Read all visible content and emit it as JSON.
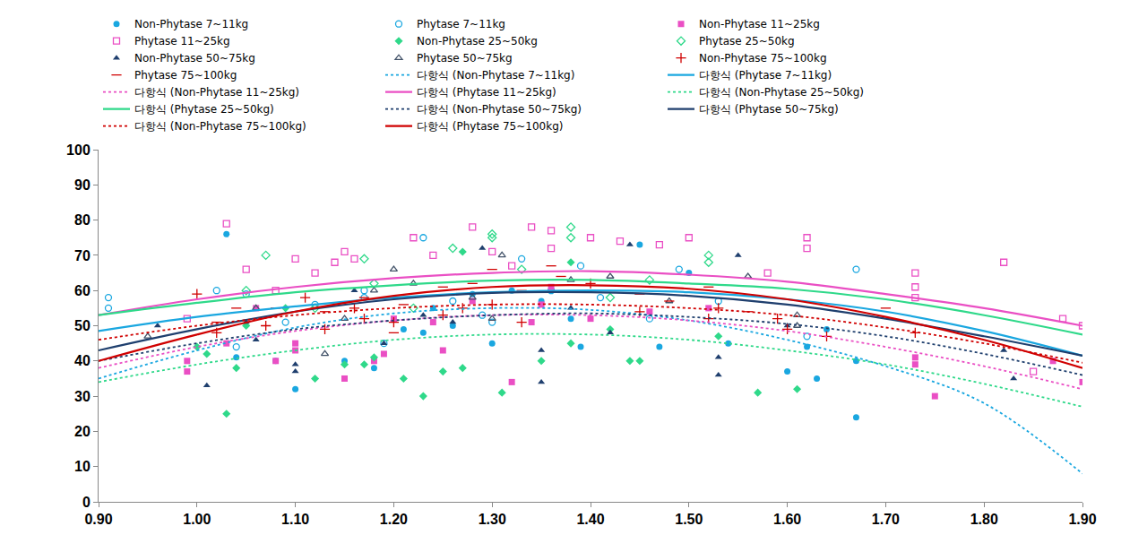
{
  "chart_data": {
    "type": "scatter",
    "xlim": [
      0.9,
      1.9
    ],
    "xticks": [
      {
        "value": 0.9,
        "label": "0.90"
      },
      {
        "value": 1.0,
        "label": "1.00"
      },
      {
        "value": 1.1,
        "label": "1.10"
      },
      {
        "value": 1.2,
        "label": "1.20"
      },
      {
        "value": 1.3,
        "label": "1.30"
      },
      {
        "value": 1.4,
        "label": "1.40"
      },
      {
        "value": 1.5,
        "label": "1.50"
      },
      {
        "value": 1.6,
        "label": "1.60"
      },
      {
        "value": 1.7,
        "label": "1.70"
      },
      {
        "value": 1.8,
        "label": "1.80"
      },
      {
        "value": 1.9,
        "label": "1.90"
      }
    ],
    "ylim": [
      0,
      100
    ],
    "yticks": [
      0,
      10,
      20,
      30,
      40,
      50,
      60,
      70,
      80,
      90,
      100
    ],
    "grid": false,
    "legend": "top",
    "series": [
      {
        "name": "Non-Phytase 7~11kg",
        "type": "scatter",
        "marker": "circle",
        "color": "#1aa7e0",
        "x": [
          1.03,
          1.04,
          1.08,
          1.1,
          1.15,
          1.18,
          1.24,
          1.26,
          1.3,
          1.32,
          1.35,
          1.38,
          1.39,
          1.45,
          1.47,
          1.5,
          1.54,
          1.6,
          1.62,
          1.63,
          1.67,
          1.67,
          1.64,
          1.23,
          1.21,
          1.28
        ],
        "values": [
          76,
          41,
          40,
          32,
          40,
          38,
          55,
          50,
          45,
          60,
          57,
          52,
          44,
          73,
          44,
          65,
          45,
          37,
          44,
          35,
          40,
          24,
          49,
          48,
          49,
          59
        ]
      },
      {
        "name": "Phytase 7~11kg",
        "type": "scatter",
        "marker": "circle-open",
        "color": "#1aa7e0",
        "x": [
          0.91,
          0.91,
          1.02,
          1.04,
          1.05,
          1.09,
          1.12,
          1.17,
          1.19,
          1.23,
          1.26,
          1.3,
          1.33,
          1.36,
          1.39,
          1.41,
          1.46,
          1.49,
          1.53,
          1.62,
          1.67,
          1.17,
          1.29
        ],
        "values": [
          58,
          55,
          60,
          44,
          59,
          51,
          56,
          58,
          45,
          75,
          57,
          51,
          69,
          60,
          67,
          58,
          52,
          66,
          57,
          47,
          66,
          60,
          53
        ]
      },
      {
        "name": "Non-Phytase 11~25kg",
        "type": "scatter",
        "marker": "square",
        "color": "#ea4fc4",
        "x": [
          0.99,
          0.99,
          1.03,
          1.06,
          1.08,
          1.1,
          1.1,
          1.15,
          1.18,
          1.2,
          1.25,
          1.28,
          1.32,
          1.34,
          1.35,
          1.36,
          1.4,
          1.46,
          1.52,
          1.73,
          1.73,
          1.75,
          1.87,
          1.9,
          1.24,
          1.19
        ],
        "values": [
          40,
          37,
          45,
          55,
          40,
          45,
          43,
          35,
          40,
          52,
          43,
          57,
          34,
          51,
          56,
          61,
          52,
          54,
          55,
          41,
          39,
          30,
          40,
          34,
          51,
          42
        ]
      },
      {
        "name": "Phytase 11~25kg",
        "type": "scatter",
        "marker": "square-open",
        "color": "#ea4fc4",
        "x": [
          1.03,
          1.05,
          1.1,
          1.12,
          1.14,
          1.15,
          1.16,
          1.22,
          1.24,
          1.28,
          1.3,
          1.32,
          1.34,
          1.36,
          1.36,
          1.4,
          1.43,
          1.47,
          1.5,
          1.58,
          1.62,
          1.62,
          1.73,
          1.73,
          1.73,
          1.82,
          1.85,
          1.88,
          1.9,
          0.99,
          1.08
        ],
        "values": [
          79,
          66,
          69,
          65,
          68,
          71,
          69,
          75,
          70,
          78,
          71,
          67,
          78,
          77,
          72,
          75,
          74,
          73,
          75,
          65,
          75,
          72,
          65,
          61,
          58,
          68,
          37,
          52,
          50,
          52,
          60
        ]
      },
      {
        "name": "Non-Phytase 25~50kg",
        "type": "scatter",
        "marker": "diamond",
        "color": "#2fd98a",
        "x": [
          1.0,
          1.01,
          1.03,
          1.04,
          1.09,
          1.12,
          1.15,
          1.17,
          1.18,
          1.21,
          1.23,
          1.25,
          1.27,
          1.31,
          1.35,
          1.38,
          1.42,
          1.44,
          1.45,
          1.53,
          1.57,
          1.61,
          1.27,
          1.38,
          1.05
        ],
        "values": [
          44,
          42,
          25,
          38,
          55,
          35,
          39,
          39,
          41,
          35,
          30,
          37,
          38,
          31,
          40,
          45,
          49,
          40,
          40,
          47,
          31,
          32,
          71,
          68,
          50
        ]
      },
      {
        "name": "Phytase 25~50kg",
        "type": "scatter",
        "marker": "diamond-open",
        "color": "#2fd98a",
        "x": [
          1.07,
          1.17,
          1.18,
          1.26,
          1.3,
          1.3,
          1.38,
          1.38,
          1.42,
          1.46,
          1.52,
          1.52,
          1.05,
          1.12,
          1.22,
          1.33
        ],
        "values": [
          70,
          69,
          62,
          72,
          76,
          75,
          78,
          75,
          58,
          63,
          70,
          68,
          60,
          55,
          55,
          66
        ]
      },
      {
        "name": "Non-Phytase 50~75kg",
        "type": "scatter",
        "marker": "triangle-up",
        "color": "#1f3f6e",
        "x": [
          0.96,
          1.01,
          1.05,
          1.06,
          1.1,
          1.1,
          1.16,
          1.19,
          1.23,
          1.29,
          1.35,
          1.35,
          1.42,
          1.44,
          1.53,
          1.53,
          1.55,
          1.6,
          1.82,
          1.83,
          1.26,
          1.38
        ],
        "values": [
          50,
          33,
          51,
          46,
          39,
          37,
          60,
          45,
          53,
          72,
          43,
          34,
          48,
          73,
          41,
          36,
          70,
          50,
          43,
          35,
          51,
          55
        ]
      },
      {
        "name": "Phytase 50~75kg",
        "type": "scatter",
        "marker": "triangle-up-open",
        "color": "#44546a",
        "x": [
          0.95,
          1.06,
          1.13,
          1.18,
          1.2,
          1.22,
          1.28,
          1.31,
          1.38,
          1.42,
          1.48,
          1.56,
          1.61,
          1.61,
          1.15,
          1.3
        ],
        "values": [
          47,
          55,
          42,
          60,
          66,
          62,
          58,
          70,
          63,
          64,
          57,
          64,
          53,
          50,
          52,
          52
        ]
      },
      {
        "name": "Non-Phytase 75~100kg",
        "type": "scatter",
        "marker": "cross",
        "color": "#d00000",
        "x": [
          1.0,
          1.02,
          1.07,
          1.11,
          1.13,
          1.16,
          1.17,
          1.2,
          1.25,
          1.27,
          1.3,
          1.33,
          1.4,
          1.45,
          1.52,
          1.53,
          1.59,
          1.6,
          1.73,
          1.64
        ],
        "values": [
          59,
          48,
          50,
          58,
          49,
          55,
          52,
          51,
          53,
          55,
          56,
          51,
          62,
          54,
          52,
          55,
          52,
          49,
          48,
          47
        ]
      },
      {
        "name": "Phytase 75~100kg",
        "type": "scatter",
        "marker": "dash",
        "color": "#d00000",
        "x": [
          1.02,
          1.04,
          1.08,
          1.13,
          1.17,
          1.2,
          1.25,
          1.28,
          1.3,
          1.33,
          1.36,
          1.37,
          1.45,
          1.48,
          1.52,
          1.56,
          1.7,
          1.21
        ],
        "values": [
          51,
          55,
          55,
          54,
          58,
          48,
          61,
          62,
          66,
          60,
          67,
          64,
          59,
          57,
          61,
          54,
          55,
          56
        ]
      },
      {
        "name": "다항식 (Non-Phytase 7~11kg)",
        "type": "line",
        "line_style": "dotted",
        "color": "#1aa7e0",
        "x": [
          0.9,
          1.0,
          1.1,
          1.2,
          1.3,
          1.4,
          1.5,
          1.6,
          1.7,
          1.8,
          1.9
        ],
        "values": [
          35,
          43,
          49.5,
          53.5,
          55,
          54.5,
          51.5,
          46,
          38.5,
          28,
          8
        ]
      },
      {
        "name": "다항식 (Phytase 7~11kg)",
        "type": "line",
        "line_style": "solid",
        "color": "#1aa7e0",
        "x": [
          0.9,
          1.0,
          1.1,
          1.2,
          1.3,
          1.4,
          1.5,
          1.6,
          1.7,
          1.8,
          1.9
        ],
        "values": [
          48.5,
          52.5,
          55.5,
          58,
          59.5,
          60,
          59.5,
          57.5,
          54,
          48.5,
          41.5
        ]
      },
      {
        "name": "다항식 (Non-Phytase 11~25kg)",
        "type": "line",
        "line_style": "dotted",
        "color": "#ea4fc4",
        "x": [
          0.9,
          1.0,
          1.1,
          1.2,
          1.3,
          1.4,
          1.5,
          1.6,
          1.7,
          1.8,
          1.9
        ],
        "values": [
          38,
          44,
          48.5,
          51.5,
          53,
          53,
          51.5,
          48.5,
          44,
          38.5,
          32
        ]
      },
      {
        "name": "다항식 (Phytase 11~25kg)",
        "type": "line",
        "line_style": "solid",
        "color": "#ea4fc4",
        "x": [
          0.9,
          1.0,
          1.1,
          1.2,
          1.3,
          1.4,
          1.5,
          1.6,
          1.7,
          1.8,
          1.9
        ],
        "values": [
          53,
          57.5,
          61,
          63.5,
          65,
          65.5,
          64.5,
          62.5,
          59,
          55,
          50
        ]
      },
      {
        "name": "다항식 (Non-Phytase 25~50kg)",
        "type": "line",
        "line_style": "dotted",
        "color": "#2fd98a",
        "x": [
          0.9,
          1.0,
          1.1,
          1.2,
          1.3,
          1.4,
          1.5,
          1.6,
          1.7,
          1.8,
          1.9
        ],
        "values": [
          34,
          39,
          43,
          46,
          47.5,
          47.5,
          46,
          43,
          39,
          33.5,
          27
        ]
      },
      {
        "name": "다항식 (Phytase 25~50kg)",
        "type": "line",
        "line_style": "solid",
        "color": "#2fd98a",
        "x": [
          0.9,
          1.0,
          1.1,
          1.2,
          1.3,
          1.4,
          1.5,
          1.6,
          1.7,
          1.8,
          1.9
        ],
        "values": [
          53,
          56.5,
          59.5,
          61.5,
          62.8,
          63,
          62,
          60.5,
          57.5,
          53,
          47.5
        ]
      },
      {
        "name": "다항식 (Non-Phytase 50~75kg)",
        "type": "line",
        "line_style": "dotted",
        "color": "#1f3f6e",
        "x": [
          0.9,
          1.0,
          1.1,
          1.2,
          1.3,
          1.4,
          1.5,
          1.6,
          1.7,
          1.8,
          1.9
        ],
        "values": [
          40,
          45,
          49,
          51.5,
          53,
          53.5,
          52.5,
          50.5,
          47,
          42,
          36
        ]
      },
      {
        "name": "다항식 (Phytase 50~75kg)",
        "type": "line",
        "line_style": "solid",
        "color": "#1f3f6e",
        "x": [
          0.9,
          1.0,
          1.1,
          1.2,
          1.3,
          1.4,
          1.5,
          1.6,
          1.7,
          1.8,
          1.9
        ],
        "values": [
          43,
          49,
          54,
          57.5,
          59.3,
          59.5,
          58.5,
          56,
          52,
          47,
          41.5
        ]
      },
      {
        "name": "다항식 (Non-Phytase 75~100kg)",
        "type": "line",
        "line_style": "dotted",
        "color": "#d00000",
        "x": [
          0.9,
          1.0,
          1.1,
          1.2,
          1.3,
          1.4,
          1.5,
          1.6,
          1.7,
          1.8,
          1.9
        ],
        "values": [
          46,
          50,
          53,
          55,
          56,
          56,
          55,
          53,
          49.5,
          45,
          39.5
        ]
      },
      {
        "name": "다항식 (Phytase 75~100kg)",
        "type": "line",
        "line_style": "solid",
        "color": "#d00000",
        "x": [
          0.9,
          1.0,
          1.1,
          1.2,
          1.3,
          1.4,
          1.5,
          1.6,
          1.7,
          1.8,
          1.9
        ],
        "values": [
          40,
          47.5,
          54,
          58.5,
          61,
          61.5,
          60.5,
          57.5,
          52.5,
          46,
          38
        ]
      }
    ]
  }
}
